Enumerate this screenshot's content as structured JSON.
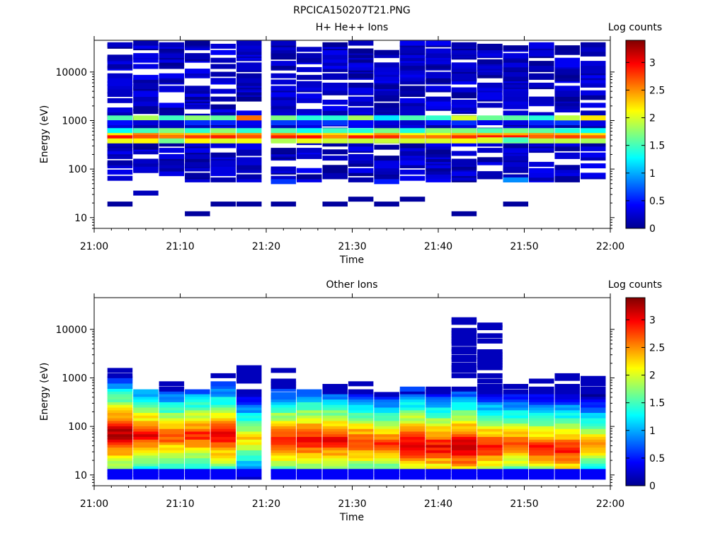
{
  "figure_title": "RPCICA150207T21.PNG",
  "chart_data": [
    {
      "type": "heatmap",
      "title": "H+ He++ Ions",
      "xlabel": "Time",
      "ylabel": "Energy (eV)",
      "x_ticks": [
        "21:00",
        "21:10",
        "21:20",
        "21:30",
        "21:40",
        "21:50",
        "22:00"
      ],
      "xlim": [
        "21:00",
        "22:00"
      ],
      "y_scale": "log",
      "y_ticks": [
        10,
        100,
        1000,
        10000
      ],
      "y_tick_labels": [
        "10",
        "100",
        "1000",
        "10000"
      ],
      "ylim": [
        6,
        45000
      ],
      "colorbar": {
        "label": "Log counts",
        "range": [
          0,
          3.4
        ],
        "ticks": [
          "0",
          "0.5",
          "1",
          "1.5",
          "2",
          "2.5",
          "3"
        ]
      },
      "time_columns": [
        "21:03",
        "21:06",
        "21:09",
        "21:12",
        "21:15",
        "21:18",
        "21:22",
        "21:25",
        "21:28",
        "21:31",
        "21:34",
        "21:37",
        "21:40",
        "21:43",
        "21:46",
        "21:49",
        "21:52",
        "21:55",
        "21:58"
      ],
      "peak_bands": [
        {
          "energy": 500,
          "log_counts": 3.0
        },
        {
          "energy": 440,
          "log_counts": 2.7
        },
        {
          "energy": 560,
          "log_counts": 2.3
        },
        {
          "energy": 380,
          "log_counts": 1.9
        },
        {
          "energy": 620,
          "log_counts": 1.5
        },
        {
          "energy": 1130,
          "log_counts": 1.6
        },
        {
          "energy": 900,
          "log_counts": 0.4
        }
      ],
      "cells": [
        {
          "time": "21:18",
          "energy": 1130,
          "log_counts": 2.6
        },
        {
          "time": "21:34",
          "energy": 1130,
          "log_counts": 1.2
        },
        {
          "time": "21:43",
          "energy": 1130,
          "log_counts": 2.0
        },
        {
          "time": "21:55",
          "energy": 1130,
          "log_counts": 1.9
        },
        {
          "time": "21:58",
          "energy": 1130,
          "log_counts": 2.2
        },
        {
          "time": "21:46",
          "energy": 400,
          "log_counts": 2.0
        },
        {
          "time": "21:49",
          "energy": 400,
          "log_counts": 1.5
        },
        {
          "time": "21:49",
          "energy": 60,
          "log_counts": 0.9
        },
        {
          "time": "21:22",
          "energy": 55,
          "log_counts": 0.6
        },
        {
          "time": "21:34",
          "energy": 55,
          "log_counts": 0.5
        },
        {
          "time": "21:03",
          "energy": 19,
          "log_counts": 0.1
        },
        {
          "time": "21:06",
          "energy": 32,
          "log_counts": 0.2
        },
        {
          "time": "21:12",
          "energy": 12,
          "log_counts": 0.1
        },
        {
          "time": "21:15",
          "energy": 19,
          "log_counts": 0.1
        },
        {
          "time": "21:18",
          "energy": 19,
          "log_counts": 0.1
        },
        {
          "time": "21:22",
          "energy": 19,
          "log_counts": 0.1
        },
        {
          "time": "21:28",
          "energy": 19,
          "log_counts": 0.1
        },
        {
          "time": "21:31",
          "energy": 24,
          "log_counts": 0.1
        },
        {
          "time": "21:34",
          "energy": 19,
          "log_counts": 0.1
        },
        {
          "time": "21:37",
          "energy": 24,
          "log_counts": 0.1
        },
        {
          "time": "21:43",
          "energy": 12,
          "log_counts": 0.1
        },
        {
          "time": "21:49",
          "energy": 19,
          "log_counts": 0.1
        }
      ]
    },
    {
      "type": "heatmap",
      "title": "Other Ions",
      "xlabel": "Time",
      "ylabel": "Energy (eV)",
      "x_ticks": [
        "21:00",
        "21:10",
        "21:20",
        "21:30",
        "21:40",
        "21:50",
        "22:00"
      ],
      "xlim": [
        "21:00",
        "22:00"
      ],
      "y_scale": "log",
      "y_ticks": [
        10,
        100,
        1000,
        10000
      ],
      "y_tick_labels": [
        "10",
        "100",
        "1000",
        "10000"
      ],
      "ylim": [
        6,
        45000
      ],
      "colorbar": {
        "label": "Log counts",
        "range": [
          0,
          3.4
        ],
        "ticks": [
          "0",
          "0.5",
          "1",
          "1.5",
          "2",
          "2.5",
          "3"
        ]
      },
      "time_columns": [
        "21:03",
        "21:06",
        "21:09",
        "21:12",
        "21:15",
        "21:18",
        "21:22",
        "21:25",
        "21:28",
        "21:31",
        "21:34",
        "21:37",
        "21:40",
        "21:43",
        "21:46",
        "21:49",
        "21:52",
        "21:55",
        "21:58"
      ],
      "columns": [
        {
          "time": "21:03",
          "top_energy": 1700,
          "peak_energy": 75,
          "peak_log_counts": 3.3
        },
        {
          "time": "21:06",
          "top_energy": 550,
          "peak_energy": 70,
          "peak_log_counts": 3.0
        },
        {
          "time": "21:09",
          "top_energy": 1150,
          "peak_energy": 65,
          "peak_log_counts": 2.8
        },
        {
          "time": "21:12",
          "top_energy": 550,
          "peak_energy": 70,
          "peak_log_counts": 2.9
        },
        {
          "time": "21:15",
          "top_energy": 1600,
          "peak_energy": 65,
          "peak_log_counts": 3.1
        },
        {
          "time": "21:18",
          "top_energy": 1800,
          "peak_energy": 60,
          "peak_log_counts": 2.3
        },
        {
          "time": "21:22",
          "top_energy": 1450,
          "peak_energy": 55,
          "peak_log_counts": 3.0
        },
        {
          "time": "21:25",
          "top_energy": 550,
          "peak_energy": 55,
          "peak_log_counts": 3.1
        },
        {
          "time": "21:28",
          "top_energy": 700,
          "peak_energy": 55,
          "peak_log_counts": 3.0
        },
        {
          "time": "21:31",
          "top_energy": 780,
          "peak_energy": 50,
          "peak_log_counts": 2.9
        },
        {
          "time": "21:34",
          "top_energy": 550,
          "peak_energy": 45,
          "peak_log_counts": 2.8
        },
        {
          "time": "21:37",
          "top_energy": 620,
          "peak_energy": 45,
          "peak_log_counts": 3.2
        },
        {
          "time": "21:40",
          "top_energy": 700,
          "peak_energy": 40,
          "peak_log_counts": 3.1
        },
        {
          "time": "21:43",
          "top_energy": 20000,
          "peak_energy": 40,
          "peak_log_counts": 3.3
        },
        {
          "time": "21:46",
          "top_energy": 15000,
          "peak_energy": 40,
          "peak_log_counts": 3.0
        },
        {
          "time": "21:49",
          "top_energy": 780,
          "peak_energy": 45,
          "peak_log_counts": 2.8
        },
        {
          "time": "21:52",
          "top_energy": 950,
          "peak_energy": 38,
          "peak_log_counts": 2.9
        },
        {
          "time": "21:55",
          "top_energy": 1300,
          "peak_energy": 35,
          "peak_log_counts": 3.0
        },
        {
          "time": "21:58",
          "top_energy": 1250,
          "peak_energy": 45,
          "peak_log_counts": 2.5
        }
      ]
    }
  ]
}
